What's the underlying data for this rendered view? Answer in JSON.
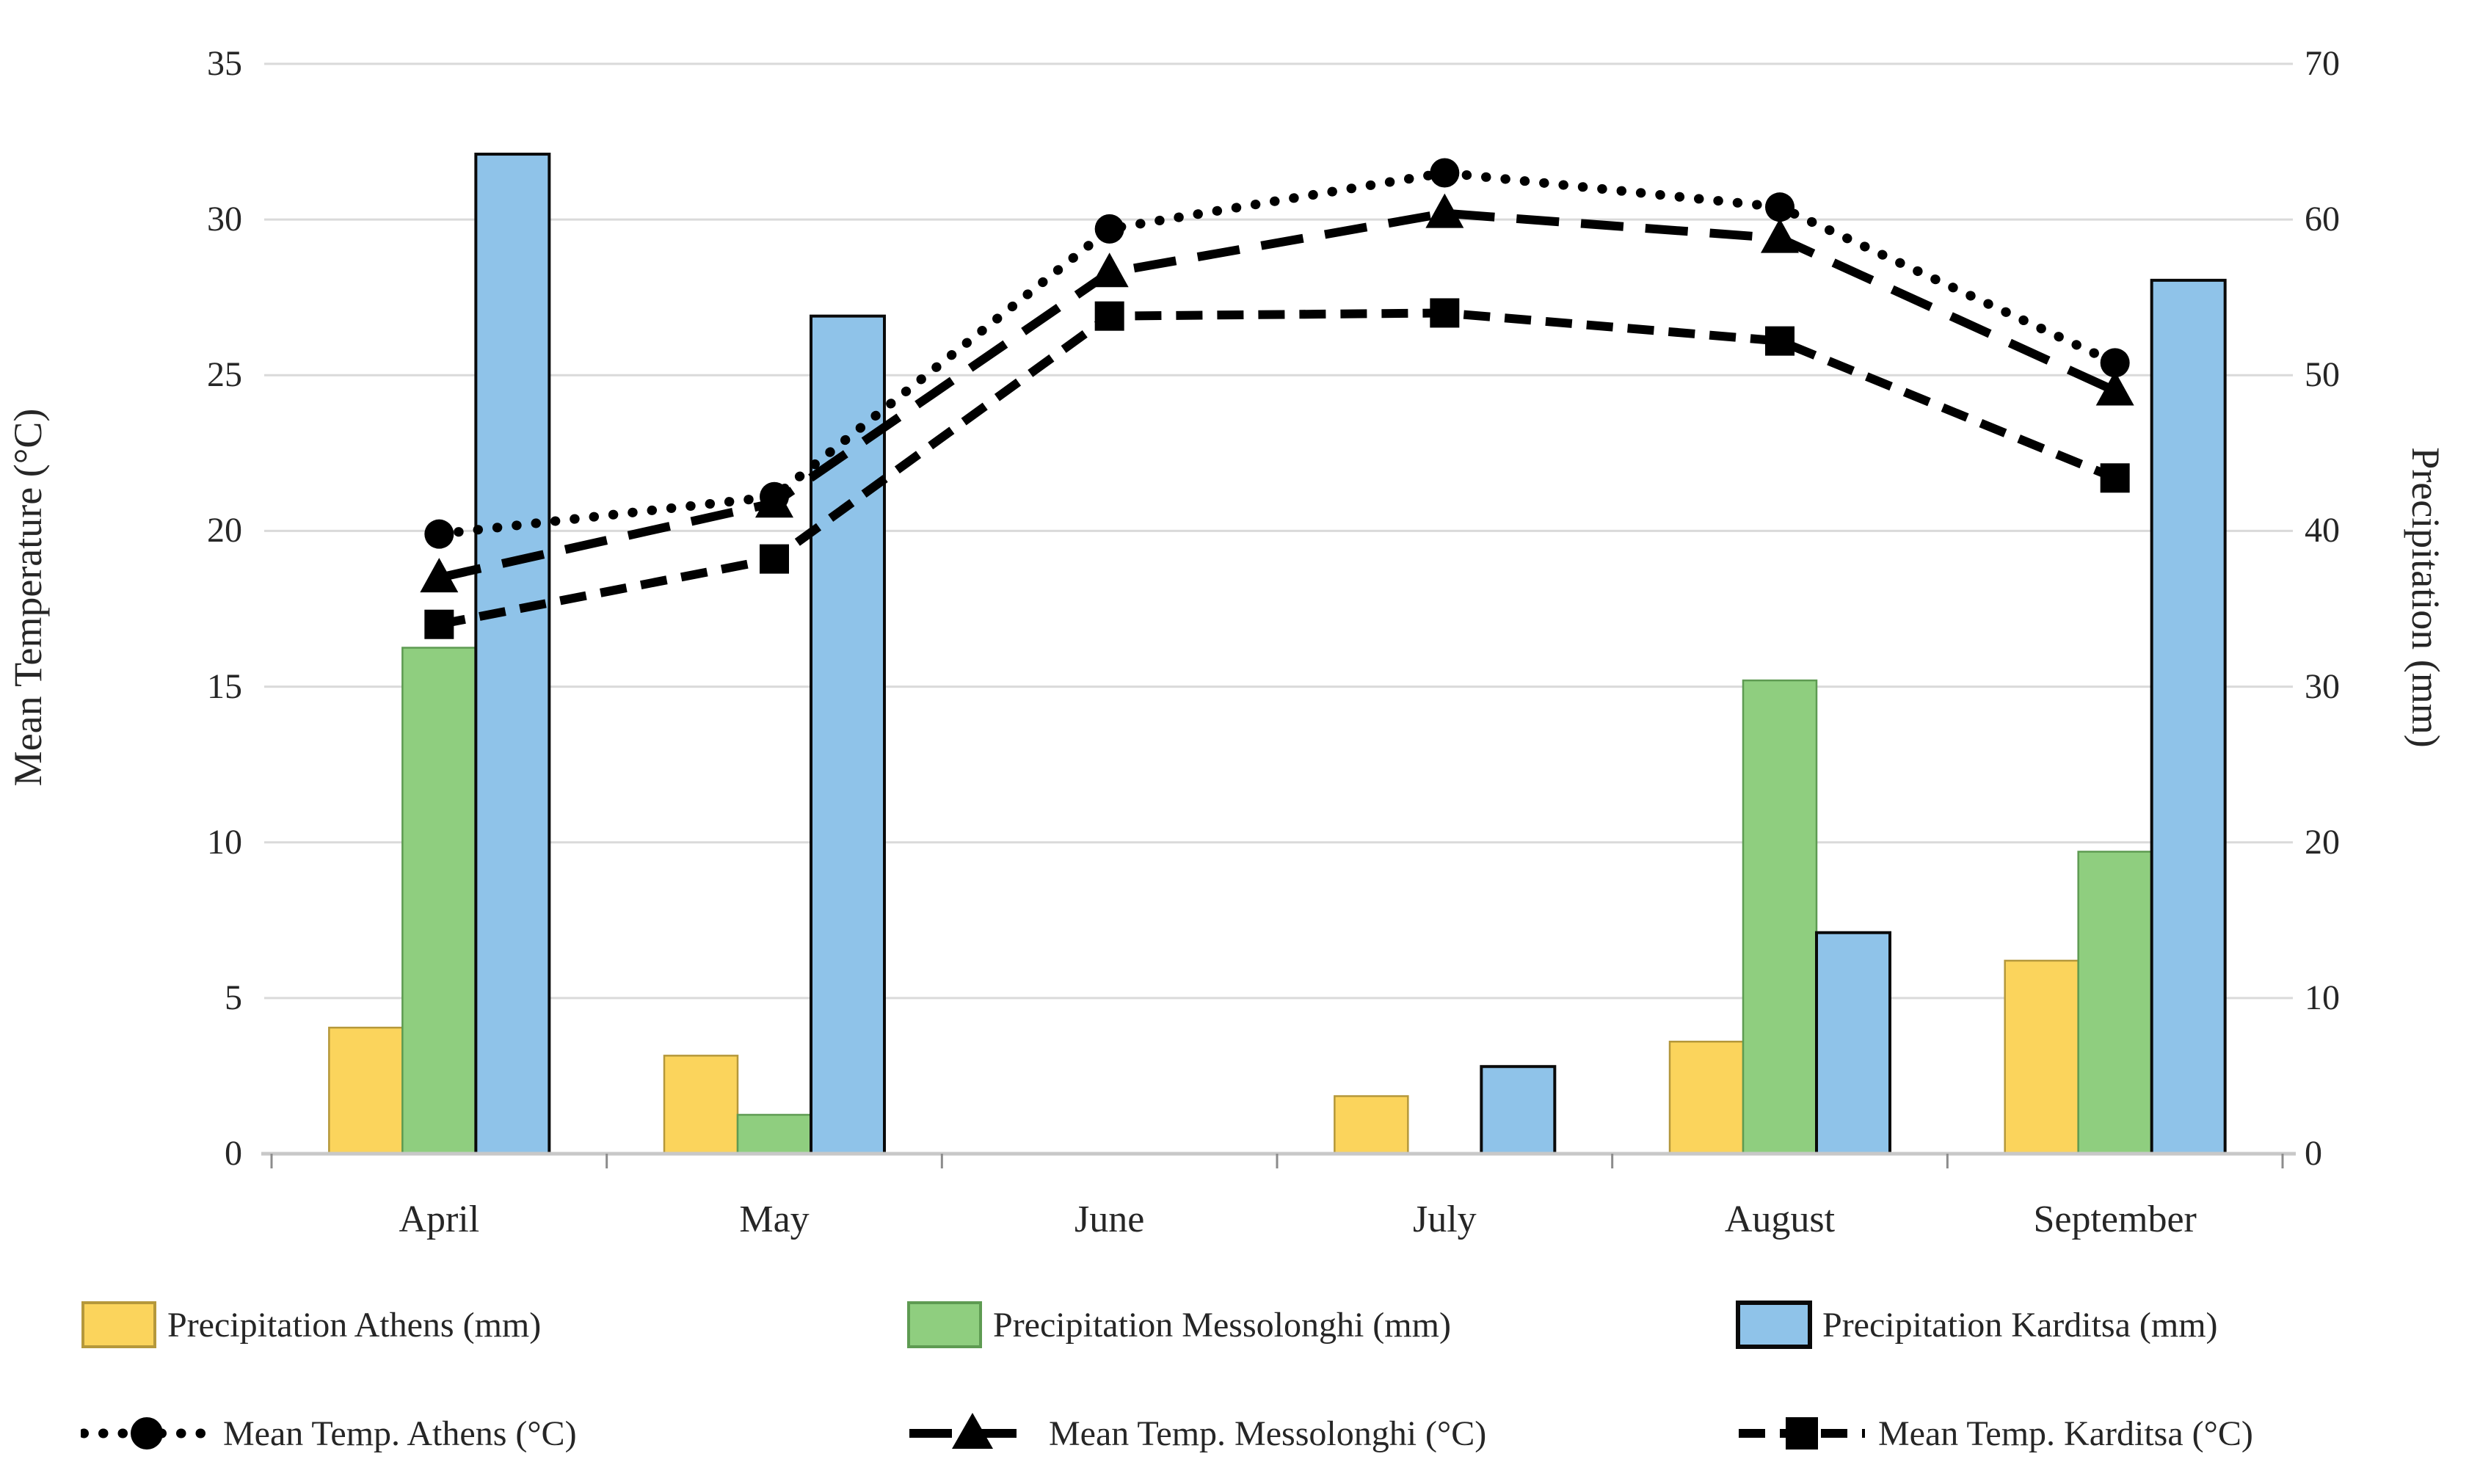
{
  "chart_data": {
    "type": "combo-bar-line",
    "categories": [
      "April",
      "May",
      "June",
      "July",
      "August",
      "September"
    ],
    "bar_series": [
      {
        "name": "Precipitation Athens (mm)",
        "axis": "right",
        "fill": "#FBD45C",
        "stroke": "#B5983B",
        "values": [
          8.1,
          6.3,
          0,
          3.7,
          7.2,
          12.4
        ]
      },
      {
        "name": "Precipitation Messolonghi (mm)",
        "axis": "right",
        "fill": "#8FCE7F",
        "stroke": "#5E9B52",
        "values": [
          32.5,
          2.5,
          0,
          0,
          30.4,
          19.4
        ]
      },
      {
        "name": "Precipitation Karditsa (mm)",
        "axis": "right",
        "fill": "#8FC3E9",
        "stroke": "#0A0A0A",
        "values": [
          64.2,
          53.8,
          0,
          5.6,
          14.2,
          56.1
        ]
      }
    ],
    "line_series": [
      {
        "name": "Mean Temp. Athens (°C)",
        "axis": "left",
        "marker": "circle",
        "dash": "dot",
        "color": "#000000",
        "values": [
          19.9,
          21.1,
          29.7,
          31.5,
          30.4,
          25.4
        ]
      },
      {
        "name": "Mean Temp. Messolonghi (°C)",
        "axis": "left",
        "marker": "triangle",
        "dash": "long-dash",
        "color": "#000000",
        "values": [
          18.5,
          20.9,
          28.3,
          30.2,
          29.4,
          24.5
        ]
      },
      {
        "name": "Mean Temp. Karditsa (°C)",
        "axis": "left",
        "marker": "square",
        "dash": "dash",
        "color": "#000000",
        "values": [
          17.0,
          19.1,
          26.9,
          27.0,
          26.1,
          21.7
        ]
      }
    ],
    "left_axis": {
      "label": "Mean Temperature (°C)",
      "min": 0,
      "max": 35,
      "ticks": [
        35,
        30,
        25,
        20,
        15,
        10,
        5,
        0
      ]
    },
    "right_axis": {
      "label": "Precipitation (mm)",
      "min": 0,
      "max": 70,
      "ticks": [
        70,
        60,
        50,
        40,
        30,
        20,
        10,
        0
      ]
    },
    "grid": true,
    "legend_position": "bottom",
    "styles": {
      "grid_color": "#DADADA",
      "baseline_color": "#C8C8C8",
      "tick_mark_color": "#8C8C8C",
      "text_color": "#262626"
    }
  }
}
